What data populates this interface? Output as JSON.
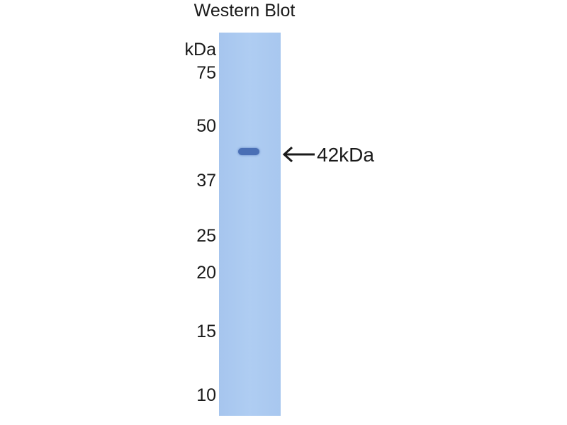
{
  "title": "Western Blot",
  "unit_label": "kDa",
  "markers": [
    "75",
    "50",
    "37",
    "25",
    "20",
    "15",
    "10"
  ],
  "band_label": "42kDa",
  "colors": {
    "lane": "#abc9f0",
    "band": "#4a6fb5"
  }
}
